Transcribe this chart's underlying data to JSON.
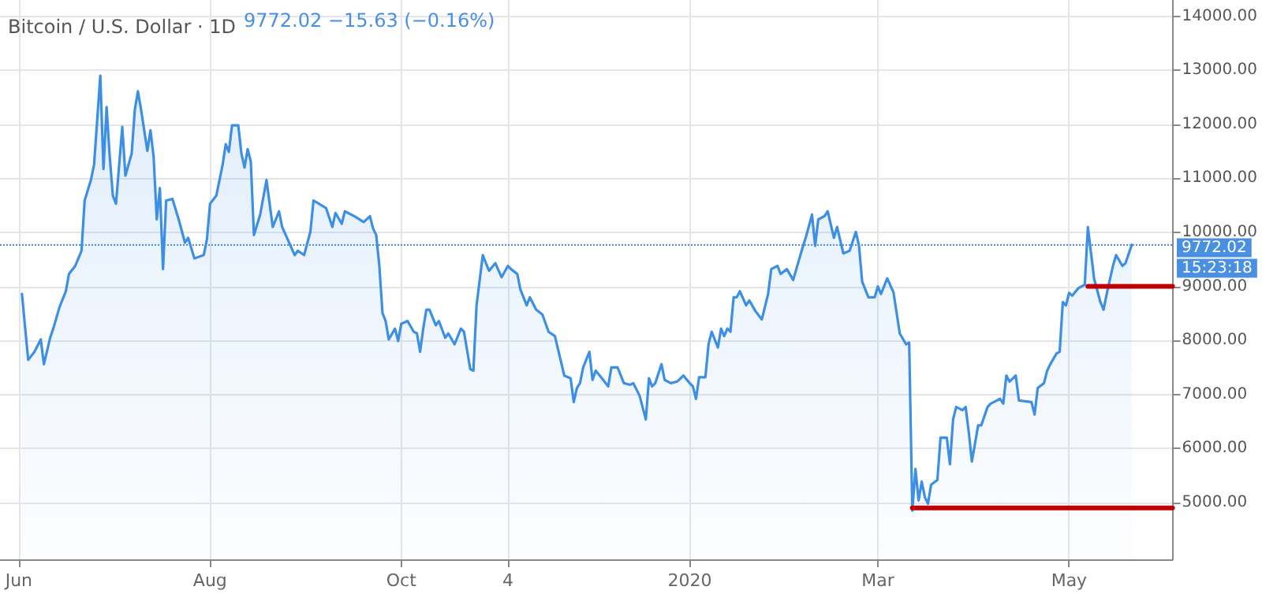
{
  "chart_data": {
    "type": "area",
    "title": "Bitcoin / U.S. Dollar · 1D",
    "subtitle": "9772.02 −15.63 (−0.16%)",
    "annotations": [
      "15:23:18"
    ],
    "xlim": [
      "2019-05-26",
      "2020-06-03"
    ],
    "xticks": [
      {
        "value": "2019-06-01",
        "label": "Jun"
      },
      {
        "value": "2019-08-01",
        "label": "Aug"
      },
      {
        "value": "2019-10-01",
        "label": "Oct"
      },
      {
        "value": "2019-11-04",
        "label": "4"
      },
      {
        "value": "2020-01-01",
        "label": "2020"
      },
      {
        "value": "2020-03-01",
        "label": "Mar"
      },
      {
        "value": "2020-05-01",
        "label": "May"
      }
    ],
    "ylim": [
      3950,
      14300
    ],
    "yticks": [
      {
        "value": 5000,
        "label": "5000.00"
      },
      {
        "value": 6000,
        "label": "6000.00"
      },
      {
        "value": 7000,
        "label": "7000.00"
      },
      {
        "value": 8000,
        "label": "8000.00"
      },
      {
        "value": 9000,
        "label": "9000.00"
      },
      {
        "value": 10000,
        "label": "10000.00"
      },
      {
        "value": 11000,
        "label": "11000.00"
      },
      {
        "value": 12000,
        "label": "12000.00"
      },
      {
        "value": 13000,
        "label": "13000.00"
      },
      {
        "value": 14000,
        "label": "14000.00"
      }
    ],
    "grid": true,
    "marker": "none",
    "ref_lines": [
      {
        "axis": "y",
        "value": 9772.02,
        "label": "9772.02",
        "color": "#4a90e2",
        "line_style": "dotted"
      }
    ],
    "series": [
      {
        "color": "#3d8fe6",
        "x": [
          "2019-06-02",
          "2019-06-04",
          "2019-06-06",
          "2019-06-08",
          "2019-06-09",
          "2019-06-11",
          "2019-06-12",
          "2019-06-14",
          "2019-06-16",
          "2019-06-17",
          "2019-06-19",
          "2019-06-21",
          "2019-06-22",
          "2019-06-24",
          "2019-06-25",
          "2019-06-27",
          "2019-06-28",
          "2019-06-29",
          "2019-06-30",
          "2019-07-01",
          "2019-07-02",
          "2019-07-04",
          "2019-07-05",
          "2019-07-07",
          "2019-07-08",
          "2019-07-09",
          "2019-07-10",
          "2019-07-12",
          "2019-07-13",
          "2019-07-14",
          "2019-07-15",
          "2019-07-16",
          "2019-07-17",
          "2019-07-18",
          "2019-07-20",
          "2019-07-22",
          "2019-07-24",
          "2019-07-25",
          "2019-07-27",
          "2019-07-30",
          "2019-07-31",
          "2019-08-01",
          "2019-08-03",
          "2019-08-05",
          "2019-08-06",
          "2019-08-07",
          "2019-08-08",
          "2019-08-10",
          "2019-08-11",
          "2019-08-12",
          "2019-08-13",
          "2019-08-14",
          "2019-08-15",
          "2019-08-17",
          "2019-08-19",
          "2019-08-21",
          "2019-08-23",
          "2019-08-24",
          "2019-08-28",
          "2019-08-29",
          "2019-08-31",
          "2019-09-02",
          "2019-09-03",
          "2019-09-07",
          "2019-09-09",
          "2019-09-10",
          "2019-09-12",
          "2019-09-13",
          "2019-09-16",
          "2019-09-19",
          "2019-09-21",
          "2019-09-22",
          "2019-09-23",
          "2019-09-24",
          "2019-09-25",
          "2019-09-26",
          "2019-09-27",
          "2019-09-29",
          "2019-09-30",
          "2019-10-01",
          "2019-10-03",
          "2019-10-05",
          "2019-10-06",
          "2019-10-07",
          "2019-10-08",
          "2019-10-09",
          "2019-10-10",
          "2019-10-12",
          "2019-10-13",
          "2019-10-15",
          "2019-10-16",
          "2019-10-18",
          "2019-10-20",
          "2019-10-21",
          "2019-10-23",
          "2019-10-24",
          "2019-10-25",
          "2019-10-27",
          "2019-10-28",
          "2019-10-29",
          "2019-10-31",
          "2019-11-02",
          "2019-11-04",
          "2019-11-05",
          "2019-11-07",
          "2019-11-08",
          "2019-11-10",
          "2019-11-11",
          "2019-11-13",
          "2019-11-15",
          "2019-11-17",
          "2019-11-19",
          "2019-11-22",
          "2019-11-24",
          "2019-11-25",
          "2019-11-26",
          "2019-11-27",
          "2019-11-28",
          "2019-11-30",
          "2019-12-01",
          "2019-12-02",
          "2019-12-04",
          "2019-12-06",
          "2019-12-07",
          "2019-12-09",
          "2019-12-11",
          "2019-12-13",
          "2019-12-14",
          "2019-12-16",
          "2019-12-18",
          "2019-12-19",
          "2019-12-20",
          "2019-12-21",
          "2019-12-23",
          "2019-12-24",
          "2019-12-26",
          "2019-12-28",
          "2019-12-30",
          "2020-01-01",
          "2020-01-02",
          "2020-01-03",
          "2020-01-04",
          "2020-01-06",
          "2020-01-07",
          "2020-01-08",
          "2020-01-10",
          "2020-01-11",
          "2020-01-12",
          "2020-01-13",
          "2020-01-14",
          "2020-01-15",
          "2020-01-16",
          "2020-01-17",
          "2020-01-19",
          "2020-01-20",
          "2020-01-22",
          "2020-01-24",
          "2020-01-26",
          "2020-01-27",
          "2020-01-29",
          "2020-01-30",
          "2020-02-01",
          "2020-02-03",
          "2020-02-06",
          "2020-02-07",
          "2020-02-09",
          "2020-02-10",
          "2020-02-11",
          "2020-02-13",
          "2020-02-14",
          "2020-02-16",
          "2020-02-17",
          "2020-02-19",
          "2020-02-21",
          "2020-02-23",
          "2020-02-24",
          "2020-02-25",
          "2020-02-27",
          "2020-02-29",
          "2020-03-01",
          "2020-03-02",
          "2020-03-04",
          "2020-03-06",
          "2020-03-08",
          "2020-03-10",
          "2020-03-11",
          "2020-03-12",
          "2020-03-13",
          "2020-03-14",
          "2020-03-15",
          "2020-03-16",
          "2020-03-17",
          "2020-03-18",
          "2020-03-20",
          "2020-03-21",
          "2020-03-23",
          "2020-03-24",
          "2020-03-25",
          "2020-03-26",
          "2020-03-28",
          "2020-03-29",
          "2020-03-30",
          "2020-03-31",
          "2020-04-02",
          "2020-04-03",
          "2020-04-05",
          "2020-04-06",
          "2020-04-09",
          "2020-04-10",
          "2020-04-11",
          "2020-04-12",
          "2020-04-14",
          "2020-04-15",
          "2020-04-19",
          "2020-04-20",
          "2020-04-21",
          "2020-04-23",
          "2020-04-24",
          "2020-04-25",
          "2020-04-27",
          "2020-04-28",
          "2020-04-29",
          "2020-04-30",
          "2020-05-01",
          "2020-05-02",
          "2020-05-04",
          "2020-05-06",
          "2020-05-07",
          "2020-05-09",
          "2020-05-11",
          "2020-05-12",
          "2020-05-13",
          "2020-05-15",
          "2020-05-16",
          "2020-05-18",
          "2020-05-19",
          "2020-05-21"
        ],
        "values": [
          8860,
          7640,
          7790,
          8020,
          7560,
          8050,
          8220,
          8620,
          8910,
          9230,
          9380,
          9660,
          10590,
          10970,
          11250,
          12900,
          11170,
          12320,
          11400,
          10680,
          10530,
          11950,
          11050,
          11460,
          12270,
          12610,
          12270,
          11510,
          11890,
          11400,
          10240,
          10820,
          9320,
          10590,
          10620,
          10240,
          9810,
          9900,
          9520,
          9580,
          9870,
          10530,
          10680,
          11250,
          11630,
          11490,
          11980,
          11980,
          11460,
          11200,
          11540,
          11310,
          9950,
          10330,
          10970,
          10100,
          10390,
          10100,
          9580,
          9660,
          9580,
          10010,
          10590,
          10450,
          10100,
          10360,
          10160,
          10390,
          10300,
          10190,
          10300,
          10070,
          9950,
          9380,
          8510,
          8360,
          8020,
          8220,
          7990,
          8310,
          8360,
          8160,
          8130,
          7790,
          8220,
          8570,
          8570,
          8280,
          8360,
          8050,
          8130,
          7930,
          8220,
          8160,
          7470,
          7440,
          8650,
          9580,
          9430,
          9290,
          9430,
          9170,
          9380,
          9320,
          9230,
          8940,
          8650,
          8800,
          8570,
          8480,
          8160,
          8080,
          7350,
          7300,
          6860,
          7120,
          7210,
          7500,
          7790,
          7270,
          7440,
          7300,
          7150,
          7500,
          7500,
          7210,
          7180,
          7210,
          6980,
          6540,
          7300,
          7150,
          7210,
          7560,
          7270,
          7210,
          7240,
          7350,
          7210,
          7150,
          6920,
          7320,
          7320,
          7930,
          8160,
          7870,
          8220,
          8080,
          8220,
          8160,
          8800,
          8800,
          8910,
          8650,
          8740,
          8540,
          8390,
          8860,
          9320,
          9380,
          9230,
          9320,
          9120,
          9720,
          9900,
          10330,
          9750,
          10240,
          10300,
          10390,
          9900,
          10100,
          9610,
          9660,
          10010,
          9750,
          9090,
          8800,
          8800,
          9000,
          8860,
          9150,
          8890,
          8130,
          7930,
          7960,
          4850,
          5620,
          5040,
          5390,
          5100,
          4980,
          5330,
          5420,
          6200,
          6200,
          5710,
          6540,
          6770,
          6710,
          6770,
          6310,
          5760,
          6430,
          6430,
          6770,
          6830,
          6920,
          6830,
          7350,
          7240,
          7350,
          6890,
          6860,
          6630,
          7120,
          7210,
          7440,
          7560,
          7760,
          7790,
          8710,
          8650,
          8880,
          8830,
          8970,
          9030,
          10100,
          9140,
          8710,
          8570,
          8860,
          9380,
          9580,
          9380,
          9430,
          9770
        ]
      },
      {
        "type": "line",
        "color": "#c00000",
        "x": [
          "2020-03-12",
          "2020-06-03"
        ],
        "values": [
          4900,
          4900
        ]
      },
      {
        "type": "line",
        "color": "#c00000",
        "x": [
          "2020-05-07",
          "2020-06-03"
        ],
        "values": [
          9000,
          9000
        ]
      }
    ]
  }
}
